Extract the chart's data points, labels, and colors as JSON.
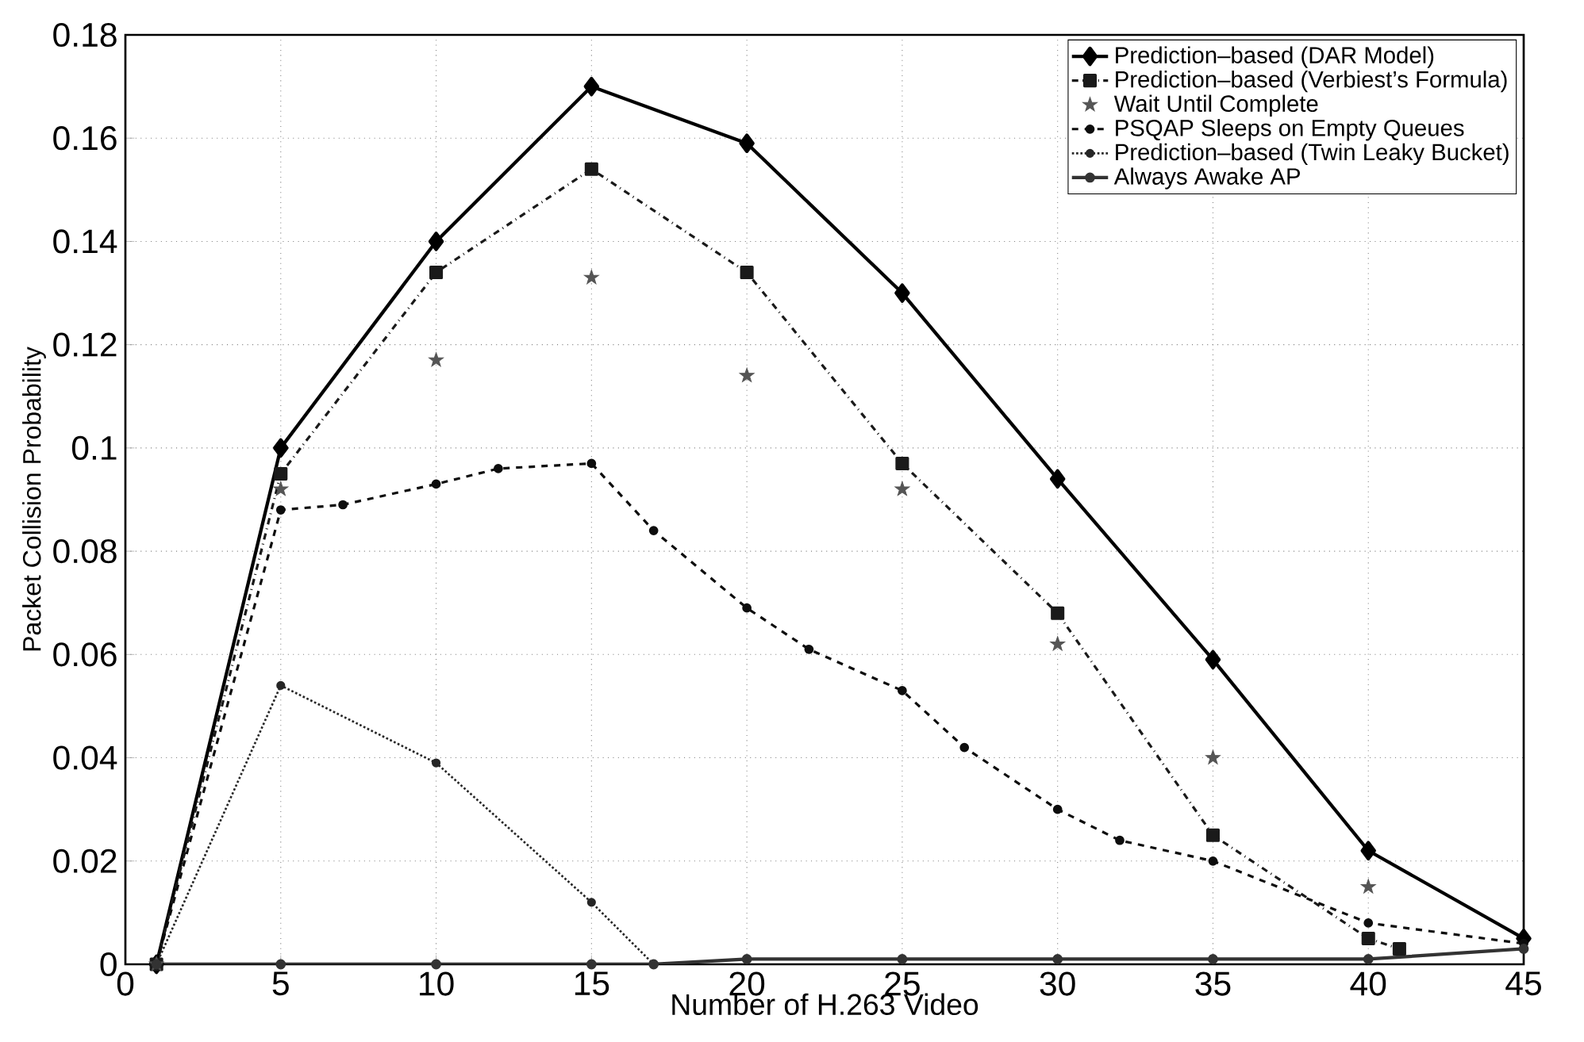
{
  "chart_data": {
    "type": "line",
    "xlabel": "Number of H.263 Video",
    "ylabel": "Packet Collision Probability",
    "xlim": [
      0,
      45
    ],
    "ylim": [
      0,
      0.18
    ],
    "xticks": [
      0,
      5,
      10,
      15,
      20,
      25,
      30,
      35,
      40,
      45
    ],
    "yticks": [
      0,
      0.02,
      0.04,
      0.06,
      0.08,
      0.1,
      0.12,
      0.14,
      0.16,
      0.18
    ],
    "grid": true,
    "legend": "top right",
    "series": [
      {
        "name": "Prediction–based (DAR Model)",
        "color": "#000000",
        "marker": "diamond",
        "line_style": "solid",
        "x": [
          1,
          5,
          10,
          15,
          20,
          25,
          30,
          35,
          40,
          45
        ],
        "values": [
          0,
          0.1,
          0.14,
          0.17,
          0.159,
          0.13,
          0.094,
          0.059,
          0.022,
          0.005
        ]
      },
      {
        "name": "Prediction–based (Verbiest’s Formula)",
        "color": "#1a1a1a",
        "marker": "square",
        "line_style": "dashdot",
        "x": [
          1,
          5,
          10,
          15,
          20,
          25,
          30,
          35,
          40,
          41
        ],
        "values": [
          0,
          0.095,
          0.134,
          0.154,
          0.134,
          0.097,
          0.068,
          0.025,
          0.005,
          0.003
        ]
      },
      {
        "name": "Wait Until Complete",
        "type": "scatter",
        "color": "#555555",
        "marker": "star",
        "x": [
          1,
          5,
          10,
          15,
          20,
          25,
          30,
          35,
          40
        ],
        "values": [
          0,
          0.092,
          0.117,
          0.133,
          0.114,
          0.092,
          0.062,
          0.04,
          0.015
        ]
      },
      {
        "name": "PSQAP Sleeps on Empty Queues",
        "color": "#0d0d0d",
        "marker": "circle",
        "line_style": "dashed",
        "x": [
          1,
          5,
          7,
          10,
          12,
          15,
          17,
          20,
          22,
          25,
          27,
          30,
          32,
          35,
          40,
          45
        ],
        "values": [
          0,
          0.088,
          0.089,
          0.093,
          0.096,
          0.097,
          0.084,
          0.069,
          0.061,
          0.053,
          0.042,
          0.03,
          0.024,
          0.02,
          0.008,
          0.004
        ]
      },
      {
        "name": "Prediction–based (Twin Leaky Bucket)",
        "color": "#262626",
        "marker": "circle",
        "line_style": "dotted",
        "x": [
          1,
          5,
          10,
          15,
          17
        ],
        "values": [
          0,
          0.054,
          0.039,
          0.012,
          0
        ]
      },
      {
        "name": "Always Awake AP",
        "color": "#333333",
        "marker": "circle",
        "line_style": "solid",
        "x": [
          1,
          5,
          10,
          15,
          17,
          20,
          25,
          30,
          35,
          40,
          45
        ],
        "values": [
          0,
          0,
          0,
          0,
          0,
          0.001,
          0.001,
          0.001,
          0.001,
          0.001,
          0.003
        ]
      }
    ]
  }
}
